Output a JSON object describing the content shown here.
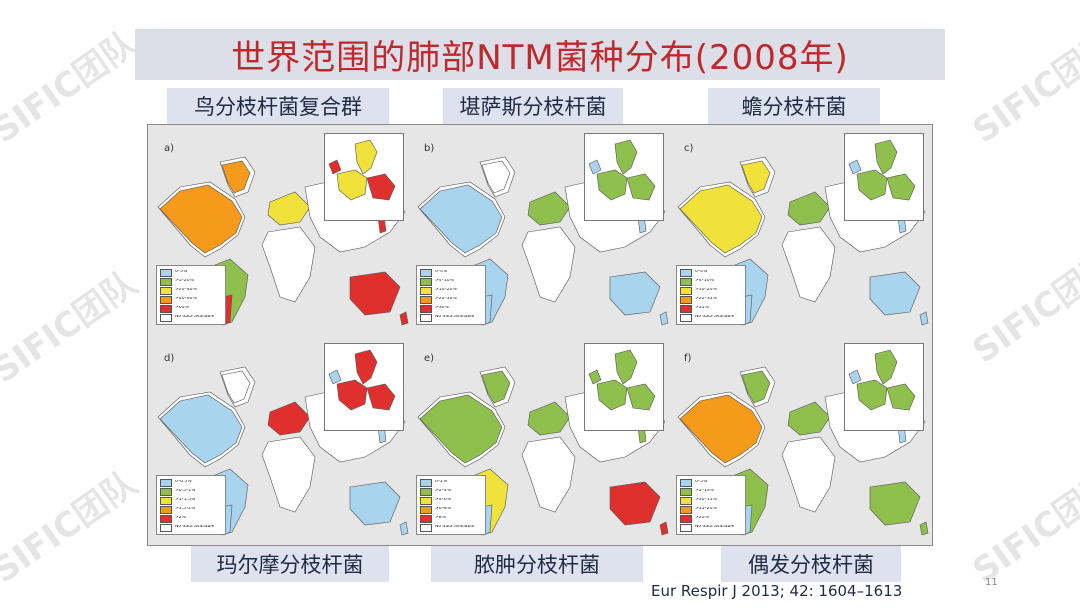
{
  "title": "世界范围的肺部NTM菌种分布(2008年)",
  "species": [
    {
      "label": "鸟分枝杆菌复合群",
      "letter": "a)",
      "legend": [
        "0–5%",
        ">5–20%",
        ">20–40%",
        ">40–60%",
        ">60%",
        "No data available"
      ],
      "legend_colors": [
        "#a9d4ee",
        "#8fbf4d",
        "#f0e23a",
        "#f59a1b",
        "#e0302e",
        "#ffffff"
      ]
    },
    {
      "label": "堪萨斯分枝杆菌",
      "letter": "b)",
      "legend": [
        "0–4%",
        ">4–10%",
        ">10–20%",
        ">20–30%",
        ">30%",
        "No data available"
      ],
      "legend_colors": [
        "#a9d4ee",
        "#8fbf4d",
        "#f0e23a",
        "#f59a1b",
        "#e0302e",
        "#ffffff"
      ]
    },
    {
      "label": "蟾分枝杆菌",
      "letter": "c)",
      "legend": [
        "0–4%",
        ">4–10%",
        ">10–20%",
        ">20–35%",
        ">35%",
        "No data available"
      ],
      "legend_colors": [
        "#a9d4ee",
        "#8fbf4d",
        "#f0e23a",
        "#f59a1b",
        "#e0302e",
        "#ffffff"
      ]
    },
    {
      "label": "玛尔摩分枝杆菌",
      "letter": "d)",
      "legend": [
        "0–0.5%",
        ">0.5–1%",
        ">1–1.5%",
        ">1.5–2%",
        ">2%",
        "No data available"
      ],
      "legend_colors": [
        "#a9d4ee",
        "#8fbf4d",
        "#f0e23a",
        "#f59a1b",
        "#e0302e",
        "#ffffff"
      ]
    },
    {
      "label": "脓肿分枝杆菌",
      "letter": "e)",
      "legend": [
        "0–2%",
        ">2–4%",
        ">4–6%",
        ">6–8%",
        ">8%",
        "No data available"
      ],
      "legend_colors": [
        "#a9d4ee",
        "#8fbf4d",
        "#f0e23a",
        "#f59a1b",
        "#e0302e",
        "#ffffff"
      ]
    },
    {
      "label": "偶发分枝杆菌",
      "letter": "f)",
      "legend": [
        "0–5%",
        ">5–10%",
        ">10–15%",
        ">15–20%",
        ">20%",
        "No data available"
      ],
      "legend_colors": [
        "#a9d4ee",
        "#8fbf4d",
        "#f0e23a",
        "#f59a1b",
        "#e0302e",
        "#ffffff"
      ]
    }
  ],
  "region_colors": [
    {
      "na": "#f59a1b",
      "sa": "#8fbf4d",
      "sa2": "#e0302e",
      "eu": "#f0e23a",
      "au": "#e0302e",
      "as": "#ffffff",
      "jp": "#e0302e",
      "af": "#ffffff",
      "gl": "#f59a1b"
    },
    {
      "na": "#a9d4ee",
      "sa": "#a9d4ee",
      "sa2": "#a9d4ee",
      "eu": "#8fbf4d",
      "au": "#a9d4ee",
      "as": "#ffffff",
      "jp": "#a9d4ee",
      "af": "#ffffff",
      "gl": "#ffffff"
    },
    {
      "na": "#f0e23a",
      "sa": "#a9d4ee",
      "sa2": "#a9d4ee",
      "eu": "#8fbf4d",
      "au": "#a9d4ee",
      "as": "#ffffff",
      "jp": "#a9d4ee",
      "af": "#ffffff",
      "gl": "#f0e23a"
    },
    {
      "na": "#a9d4ee",
      "sa": "#a9d4ee",
      "sa2": "#a9d4ee",
      "eu": "#e0302e",
      "au": "#a9d4ee",
      "as": "#ffffff",
      "jp": "#a9d4ee",
      "af": "#ffffff",
      "gl": "#ffffff"
    },
    {
      "na": "#8fbf4d",
      "sa": "#f0e23a",
      "sa2": "#a9d4ee",
      "eu": "#8fbf4d",
      "au": "#e0302e",
      "as": "#ffffff",
      "jp": "#8fbf4d",
      "af": "#ffffff",
      "gl": "#8fbf4d"
    },
    {
      "na": "#f59a1b",
      "sa": "#8fbf4d",
      "sa2": "#a9d4ee",
      "eu": "#8fbf4d",
      "au": "#8fbf4d",
      "as": "#ffffff",
      "jp": "#a9d4ee",
      "af": "#ffffff",
      "gl": "#8fbf4d"
    }
  ],
  "watermark_text": "SIFIC团队",
  "citation": "Eur Respir J 2013; 42: 1604–1613",
  "page_number": "11"
}
